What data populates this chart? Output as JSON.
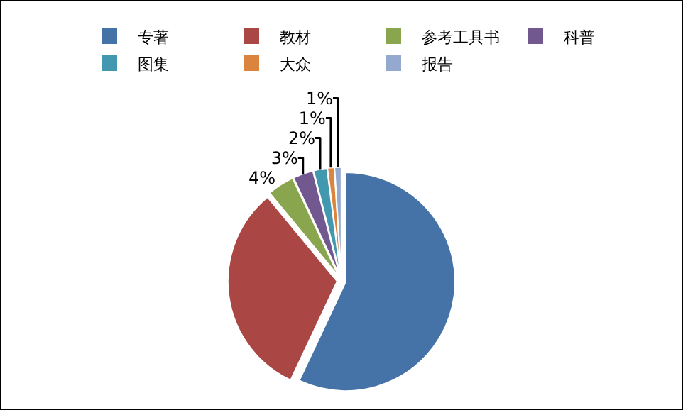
{
  "chart_data": {
    "type": "pie",
    "categories": [
      "专著",
      "教材",
      "参考工具书",
      "科普",
      "图集",
      "大众",
      "报告"
    ],
    "values": [
      57,
      32,
      4,
      3,
      2,
      1,
      1
    ],
    "colors": [
      "#4572a7",
      "#aa4643",
      "#89a54e",
      "#71588f",
      "#4198af",
      "#db843d",
      "#93a9cf"
    ],
    "value_labels": [
      null,
      null,
      "4%",
      "3%",
      "2%",
      "1%",
      "1%"
    ],
    "legend": "top"
  }
}
